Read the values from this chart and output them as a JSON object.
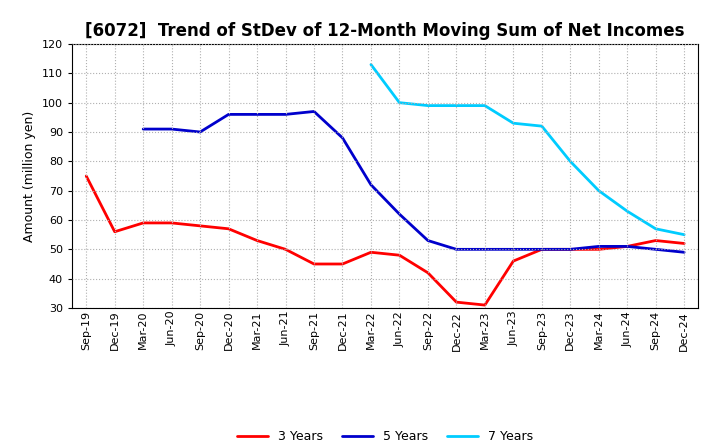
{
  "title": "[6072]  Trend of StDev of 12-Month Moving Sum of Net Incomes",
  "ylabel": "Amount (million yen)",
  "background_color": "#ffffff",
  "grid_color": "#b0b0b0",
  "ylim": [
    30,
    120
  ],
  "yticks": [
    30,
    40,
    50,
    60,
    70,
    80,
    90,
    100,
    110,
    120
  ],
  "x_labels": [
    "Sep-19",
    "Dec-19",
    "Mar-20",
    "Jun-20",
    "Sep-20",
    "Dec-20",
    "Mar-21",
    "Jun-21",
    "Sep-21",
    "Dec-21",
    "Mar-22",
    "Jun-22",
    "Sep-22",
    "Dec-22",
    "Mar-23",
    "Jun-23",
    "Sep-23",
    "Dec-23",
    "Mar-24",
    "Jun-24",
    "Sep-24",
    "Dec-24"
  ],
  "series": {
    "3 Years": {
      "color": "#ff0000",
      "data": [
        75,
        56,
        59,
        59,
        58,
        57,
        53,
        50,
        45,
        45,
        49,
        48,
        42,
        32,
        31,
        46,
        50,
        50,
        50,
        51,
        53,
        52
      ]
    },
    "5 Years": {
      "color": "#0000cc",
      "data": [
        null,
        null,
        91,
        91,
        90,
        96,
        96,
        96,
        97,
        88,
        72,
        62,
        53,
        50,
        50,
        50,
        50,
        50,
        51,
        51,
        50,
        49
      ]
    },
    "7 Years": {
      "color": "#00ccff",
      "data": [
        null,
        null,
        null,
        null,
        null,
        null,
        null,
        null,
        null,
        null,
        113,
        100,
        99,
        99,
        99,
        93,
        92,
        80,
        70,
        63,
        57,
        55
      ]
    },
    "10 Years": {
      "color": "#008000",
      "data": [
        null,
        null,
        null,
        null,
        null,
        null,
        null,
        null,
        null,
        null,
        null,
        null,
        null,
        null,
        null,
        null,
        null,
        null,
        null,
        null,
        null,
        null
      ]
    }
  },
  "linewidth": 2.0,
  "title_fontsize": 12,
  "label_fontsize": 9,
  "tick_fontsize": 8,
  "legend_fontsize": 9
}
